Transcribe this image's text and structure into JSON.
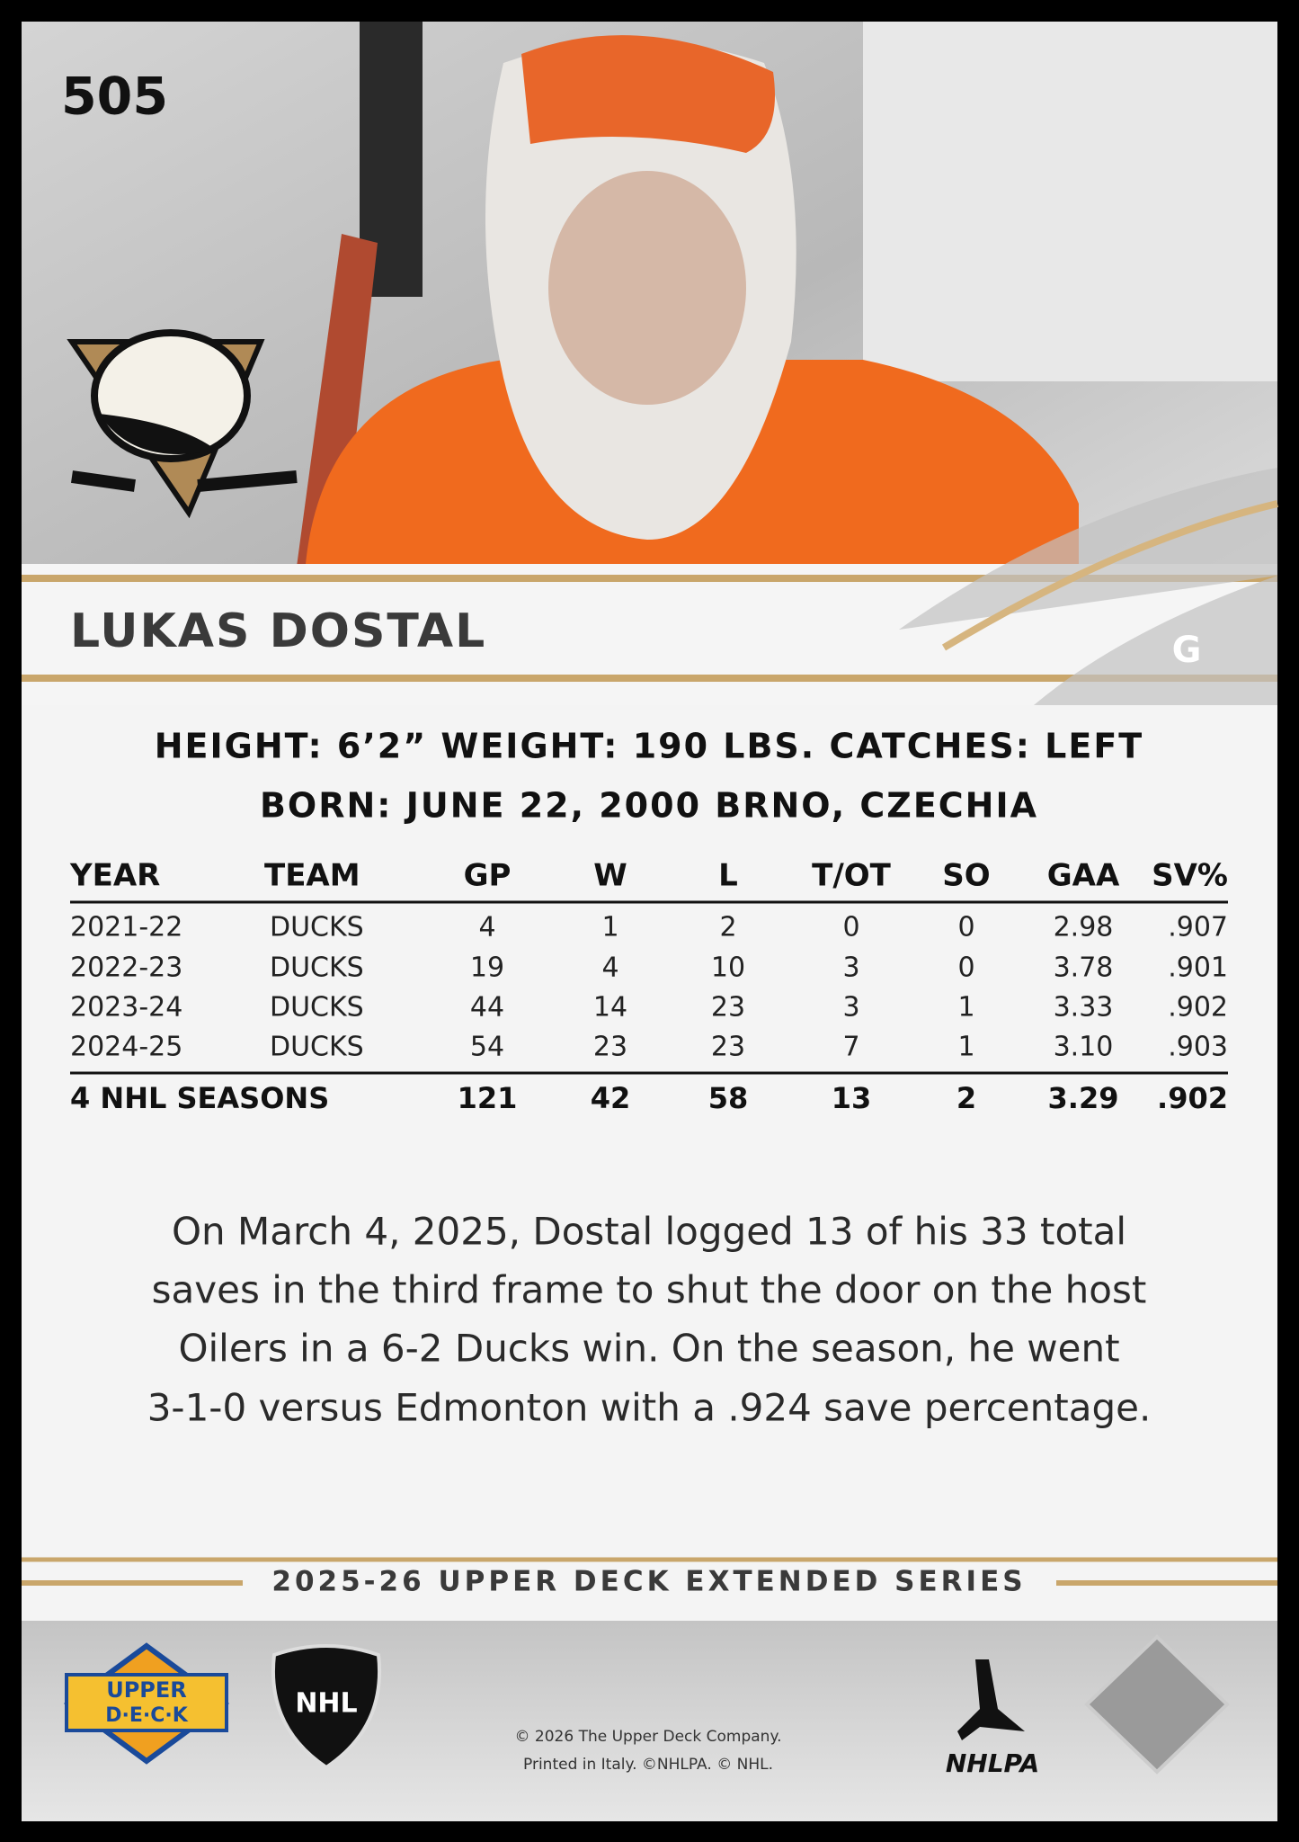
{
  "card_number": "505",
  "player": {
    "name": "LUKAS DOSTAL",
    "position": "G"
  },
  "bio": [
    "HEIGHT: 6’2” WEIGHT: 190 LBS. CATCHES: LEFT",
    "BORN: JUNE 22, 2000 BRNO, CZECHIA"
  ],
  "stats": {
    "columns": [
      "YEAR",
      "TEAM",
      "GP",
      "W",
      "L",
      "T/OT",
      "SO",
      "GAA",
      "SV%"
    ],
    "rows": [
      [
        "2021-22",
        "DUCKS",
        "4",
        "1",
        "2",
        "0",
        "0",
        "2.98",
        ".907"
      ],
      [
        "2022-23",
        "DUCKS",
        "19",
        "4",
        "10",
        "3",
        "0",
        "3.78",
        ".901"
      ],
      [
        "2023-24",
        "DUCKS",
        "44",
        "14",
        "23",
        "3",
        "1",
        "3.33",
        ".902"
      ],
      [
        "2024-25",
        "DUCKS",
        "54",
        "23",
        "23",
        "7",
        "1",
        "3.10",
        ".903"
      ]
    ],
    "totals": [
      "4 NHL SEASONS",
      "121",
      "42",
      "58",
      "13",
      "2",
      "3.29",
      ".902"
    ]
  },
  "blurb": [
    "On March 4, 2025, Dostal logged 13 of his 33 total",
    "saves in the third frame to shut the door on the host",
    "Oilers in a 6-2 Ducks win. On the season, he went",
    "3-1-0 versus Edmonton with a .924 save percentage."
  ],
  "series": "2025-26 UPPER DECK EXTENDED SERIES",
  "footer": {
    "copyright": [
      "© 2026 The Upper Deck Company.",
      "Printed in Italy. ©NHLPA. © NHL."
    ],
    "logos": [
      "UPPER",
      "D·E·C·K",
      "NHL",
      "NHLPA"
    ]
  }
}
